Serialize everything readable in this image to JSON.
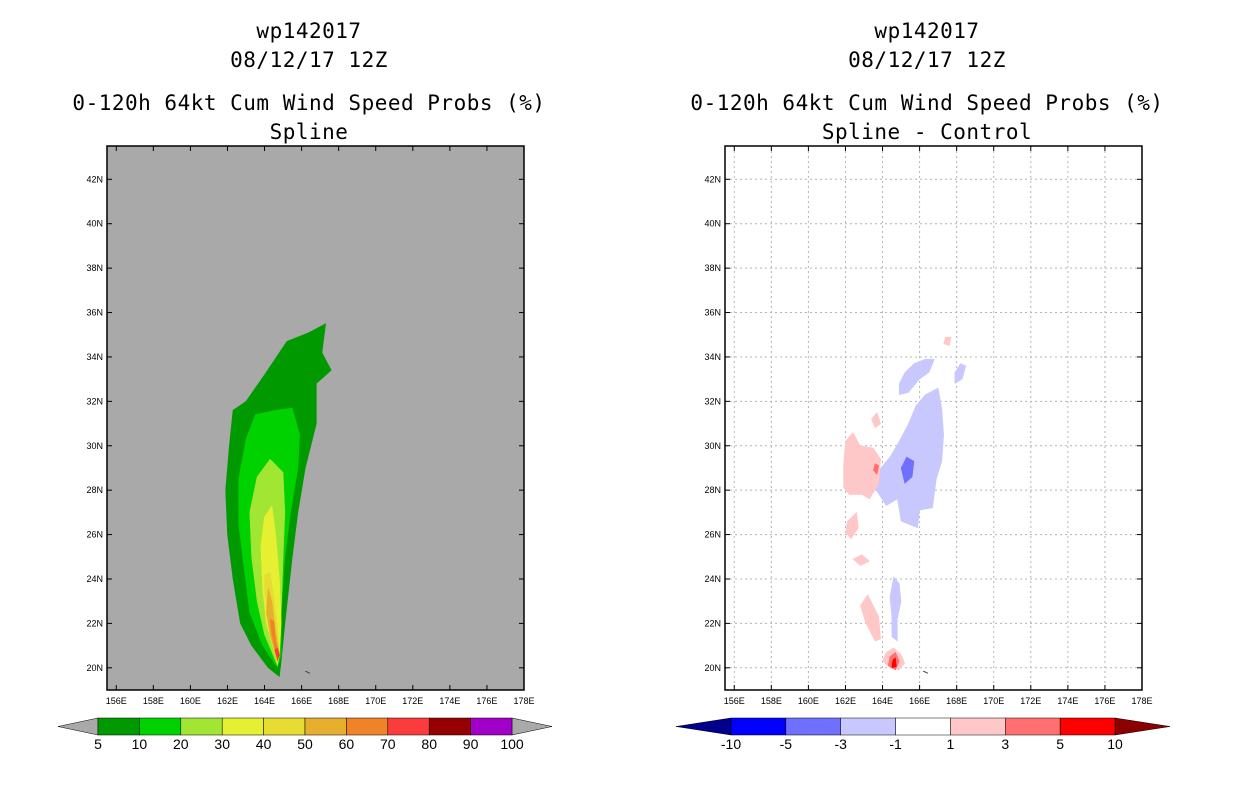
{
  "left_panel": {
    "title_line1": "wp142017",
    "title_line2": "08/12/17 12Z",
    "title_line3": "0-120h 64kt Cum Wind Speed Probs (%)",
    "title_line4": "Spline"
  },
  "right_panel": {
    "title_line1": "wp142017",
    "title_line2": "08/12/17 12Z",
    "title_line3": "0-120h 64kt Cum Wind Speed Probs (%)",
    "title_line4": "Spline - Control"
  },
  "chart_data": [
    {
      "type": "heatmap",
      "title": "0-120h 64kt Cum Wind Speed Probs (%) - Spline",
      "xlabel": "",
      "ylabel": "",
      "xlim": [
        155.5,
        178
      ],
      "ylim": [
        19,
        43.5
      ],
      "x_ticks": [
        156,
        158,
        160,
        162,
        164,
        166,
        168,
        170,
        172,
        174,
        176,
        178
      ],
      "x_tick_labels": [
        "156E",
        "158E",
        "160E",
        "162E",
        "164E",
        "166E",
        "168E",
        "170E",
        "172E",
        "174E",
        "176E",
        "178E"
      ],
      "y_ticks": [
        20,
        22,
        24,
        26,
        28,
        30,
        32,
        34,
        36,
        38,
        40,
        42
      ],
      "y_tick_labels": [
        "20N",
        "22N",
        "24N",
        "26N",
        "28N",
        "30N",
        "32N",
        "34N",
        "36N",
        "38N",
        "40N",
        "42N"
      ],
      "background_color": "#a9a9a9",
      "colorbar": {
        "labels": [
          "5",
          "10",
          "20",
          "30",
          "40",
          "50",
          "60",
          "70",
          "80",
          "90",
          "100"
        ],
        "colors": [
          "#009a00",
          "#00d200",
          "#a0e632",
          "#e6f032",
          "#e6dc32",
          "#e6af2d",
          "#f08228",
          "#fa3c3c",
          "#960000",
          "#a000c8"
        ],
        "extend_color": "#a9a9a9"
      },
      "contours": [
        {
          "level": 5,
          "color": "#009a00",
          "points": [
            [
              164.8,
              19.6
            ],
            [
              164.2,
              20
            ],
            [
              163.3,
              21
            ],
            [
              162.7,
              22
            ],
            [
              162.3,
              24
            ],
            [
              162,
              26
            ],
            [
              161.9,
              28
            ],
            [
              162.1,
              30
            ],
            [
              162.3,
              31.6
            ],
            [
              163,
              32
            ],
            [
              164,
              33.2
            ],
            [
              165.2,
              34.7
            ],
            [
              166.4,
              35.1
            ],
            [
              167.3,
              35.5
            ],
            [
              167.1,
              34.2
            ],
            [
              167.6,
              33.4
            ],
            [
              166.8,
              32.8
            ],
            [
              166.8,
              31
            ],
            [
              166.2,
              29
            ],
            [
              165.8,
              27
            ],
            [
              165.5,
              25
            ],
            [
              165.1,
              22
            ],
            [
              164.9,
              20.3
            ]
          ]
        },
        {
          "level": 10,
          "color": "#00d200",
          "points": [
            [
              164.7,
              20
            ],
            [
              163.9,
              21
            ],
            [
              163.2,
              22.5
            ],
            [
              162.9,
              24.5
            ],
            [
              162.6,
              26.5
            ],
            [
              162.6,
              28.5
            ],
            [
              163,
              30.3
            ],
            [
              163.5,
              31.4
            ],
            [
              164.6,
              31.6
            ],
            [
              165.5,
              31.7
            ],
            [
              165.9,
              30.5
            ],
            [
              165.8,
              29
            ],
            [
              165.4,
              27
            ],
            [
              165.1,
              25
            ],
            [
              164.9,
              22.5
            ],
            [
              164.9,
              20.6
            ]
          ]
        },
        {
          "level": 20,
          "color": "#a0e632",
          "points": [
            [
              164.7,
              20.1
            ],
            [
              164,
              21.5
            ],
            [
              163.6,
              23
            ],
            [
              163.3,
              25
            ],
            [
              163.2,
              27
            ],
            [
              163.6,
              28.6
            ],
            [
              164.3,
              29.4
            ],
            [
              165,
              28.8
            ],
            [
              165.1,
              27
            ],
            [
              165,
              25
            ],
            [
              164.9,
              22.5
            ],
            [
              164.8,
              20.6
            ]
          ]
        },
        {
          "level": 30,
          "color": "#e6f032",
          "points": [
            [
              164.7,
              20.2
            ],
            [
              164.1,
              22
            ],
            [
              163.9,
              23.5
            ],
            [
              163.8,
              25.5
            ],
            [
              164,
              26.8
            ],
            [
              164.4,
              27.3
            ],
            [
              164.6,
              26
            ],
            [
              164.8,
              24
            ],
            [
              164.9,
              22
            ],
            [
              164.8,
              20.6
            ]
          ]
        },
        {
          "level": 40,
          "color": "#e6dc32",
          "points": [
            [
              164.7,
              20.2
            ],
            [
              164.2,
              22
            ],
            [
              164,
              23.5
            ],
            [
              164,
              24.2
            ],
            [
              164.3,
              24.3
            ],
            [
              164.5,
              23.2
            ],
            [
              164.7,
              21.8
            ],
            [
              164.8,
              20.6
            ]
          ]
        },
        {
          "level": 50,
          "color": "#e6af2d",
          "points": [
            [
              164.7,
              20.3
            ],
            [
              164.3,
              21.5
            ],
            [
              164.1,
              22.5
            ],
            [
              164.2,
              23.6
            ],
            [
              164.4,
              23
            ],
            [
              164.6,
              21.6
            ],
            [
              164.8,
              20.6
            ]
          ]
        },
        {
          "level": 60,
          "color": "#f08228",
          "points": [
            [
              164.7,
              20.3
            ],
            [
              164.4,
              21.5
            ],
            [
              164.3,
              22.2
            ],
            [
              164.5,
              22.1
            ],
            [
              164.6,
              21.2
            ],
            [
              164.8,
              20.6
            ]
          ]
        },
        {
          "level": 70,
          "color": "#fa3c3c",
          "points": [
            [
              164.7,
              20.35
            ],
            [
              164.55,
              20.8
            ],
            [
              164.7,
              20.9
            ],
            [
              164.8,
              20.6
            ]
          ]
        }
      ]
    },
    {
      "type": "heatmap",
      "title": "0-120h 64kt Cum Wind Speed Probs (%) - Spline - Control",
      "xlabel": "",
      "ylabel": "",
      "xlim": [
        155.5,
        178
      ],
      "ylim": [
        19,
        43.5
      ],
      "x_ticks": [
        156,
        158,
        160,
        162,
        164,
        166,
        168,
        170,
        172,
        174,
        176,
        178
      ],
      "x_tick_labels": [
        "156E",
        "158E",
        "160E",
        "162E",
        "164E",
        "166E",
        "168E",
        "170E",
        "172E",
        "174E",
        "176E",
        "178E"
      ],
      "y_ticks": [
        20,
        22,
        24,
        26,
        28,
        30,
        32,
        34,
        36,
        38,
        40,
        42
      ],
      "y_tick_labels": [
        "20N",
        "22N",
        "24N",
        "26N",
        "28N",
        "30N",
        "32N",
        "34N",
        "36N",
        "38N",
        "40N",
        "42N"
      ],
      "grid": true,
      "colorbar": {
        "labels": [
          "-10",
          "-5",
          "-3",
          "-1",
          "1",
          "3",
          "5",
          "10"
        ],
        "colors": [
          "#0000ff",
          "#7070ff",
          "#c8c8ff",
          "#ffffff",
          "#ffc8c8",
          "#ff7070",
          "#ff0000"
        ],
        "extend_low_color": "#00008c",
        "extend_high_color": "#8c0000"
      },
      "contours": [
        {
          "level": -3,
          "color": "#c8c8ff",
          "points": [
            [
              163.5,
              28.2
            ],
            [
              164.2,
              27.3
            ],
            [
              164.8,
              27.6
            ],
            [
              165,
              26.6
            ],
            [
              165.9,
              26.3
            ],
            [
              166,
              27.1
            ],
            [
              166.7,
              27.2
            ],
            [
              166.9,
              28.5
            ],
            [
              167.2,
              29.3
            ],
            [
              167.3,
              30.5
            ],
            [
              167.2,
              31.7
            ],
            [
              167,
              32.6
            ],
            [
              166.3,
              32.3
            ],
            [
              165.8,
              31.8
            ],
            [
              165.4,
              31
            ],
            [
              164.9,
              30.2
            ],
            [
              164.4,
              29.5
            ],
            [
              163.9,
              29
            ]
          ]
        },
        {
          "level": -3,
          "color": "#c8c8ff",
          "points": [
            [
              164.9,
              32.3
            ],
            [
              165.4,
              32.4
            ],
            [
              166,
              33
            ],
            [
              166.5,
              33.3
            ],
            [
              166.8,
              33.9
            ],
            [
              166.3,
              33.9
            ],
            [
              165.7,
              33.7
            ],
            [
              165.2,
              33.3
            ],
            [
              164.9,
              32.8
            ]
          ]
        },
        {
          "level": -3,
          "color": "#c8c8ff",
          "points": [
            [
              167.9,
              32.8
            ],
            [
              168.3,
              33
            ],
            [
              168.5,
              33.6
            ],
            [
              168.2,
              33.7
            ],
            [
              167.9,
              33.3
            ]
          ]
        },
        {
          "level": -3,
          "color": "#c8c8ff",
          "points": [
            [
              164.5,
              21.4
            ],
            [
              164.8,
              21.2
            ],
            [
              164.8,
              22.2
            ],
            [
              165,
              23
            ],
            [
              164.9,
              23.8
            ],
            [
              164.6,
              24.1
            ],
            [
              164.4,
              23.2
            ],
            [
              164.5,
              22.3
            ]
          ]
        },
        {
          "level": -5,
          "color": "#7070ff",
          "points": [
            [
              165.2,
              28.3
            ],
            [
              165.6,
              28.6
            ],
            [
              165.7,
              29.3
            ],
            [
              165.3,
              29.5
            ],
            [
              165,
              29
            ]
          ]
        },
        {
          "level": 1,
          "color": "#ffc8c8",
          "points": [
            [
              161.9,
              28.1
            ],
            [
              162.2,
              27.8
            ],
            [
              162.9,
              27.8
            ],
            [
              163.3,
              27.6
            ],
            [
              163.8,
              28.3
            ],
            [
              163.9,
              29.4
            ],
            [
              163.5,
              29.9
            ],
            [
              162.8,
              30
            ],
            [
              162.4,
              30.6
            ],
            [
              162,
              30.2
            ],
            [
              161.9,
              29.2
            ]
          ]
        },
        {
          "level": 1,
          "color": "#ffc8c8",
          "points": [
            [
              162.1,
              26.6
            ],
            [
              162.6,
              27
            ],
            [
              162.7,
              26.3
            ],
            [
              162.3,
              25.8
            ],
            [
              162,
              26.1
            ]
          ]
        },
        {
          "level": 1,
          "color": "#ffc8c8",
          "points": [
            [
              162.4,
              24.9
            ],
            [
              162.9,
              25.1
            ],
            [
              163.3,
              24.8
            ],
            [
              162.8,
              24.6
            ]
          ]
        },
        {
          "level": 1,
          "color": "#ffc8c8",
          "points": [
            [
              163.4,
              31.2
            ],
            [
              163.7,
              31.5
            ],
            [
              163.9,
              31
            ],
            [
              163.6,
              30.8
            ]
          ]
        },
        {
          "level": 1,
          "color": "#ffc8c8",
          "points": [
            [
              162.8,
              22.8
            ],
            [
              163.2,
              23.3
            ],
            [
              163.8,
              22.3
            ],
            [
              163.9,
              21.3
            ],
            [
              163.6,
              21.2
            ],
            [
              163.1,
              22
            ]
          ]
        },
        {
          "level": 1,
          "color": "#ffc8c8",
          "points": [
            [
              164,
              20.3
            ],
            [
              164.4,
              20
            ],
            [
              164.9,
              19.9
            ],
            [
              165.2,
              20.2
            ],
            [
              165,
              20.6
            ],
            [
              164.6,
              20.9
            ],
            [
              164.2,
              20.7
            ]
          ]
        },
        {
          "level": 1,
          "color": "#ffc8c8",
          "points": [
            [
              167.3,
              34.6
            ],
            [
              167.6,
              34.5
            ],
            [
              167.7,
              34.9
            ],
            [
              167.4,
              34.9
            ]
          ]
        },
        {
          "level": 3,
          "color": "#ff7070",
          "points": [
            [
              164.3,
              20.1
            ],
            [
              164.7,
              19.9
            ],
            [
              164.9,
              20.3
            ],
            [
              164.7,
              20.7
            ],
            [
              164.4,
              20.5
            ]
          ]
        },
        {
          "level": 5,
          "color": "#ff0000",
          "points": [
            [
              164.5,
              20.0
            ],
            [
              164.75,
              20.05
            ],
            [
              164.7,
              20.45
            ],
            [
              164.55,
              20.35
            ]
          ]
        },
        {
          "level": 3,
          "color": "#ff7070",
          "points": [
            [
              163.5,
              28.9
            ],
            [
              163.7,
              28.7
            ],
            [
              163.8,
              29.1
            ],
            [
              163.6,
              29.2
            ]
          ]
        }
      ]
    }
  ]
}
